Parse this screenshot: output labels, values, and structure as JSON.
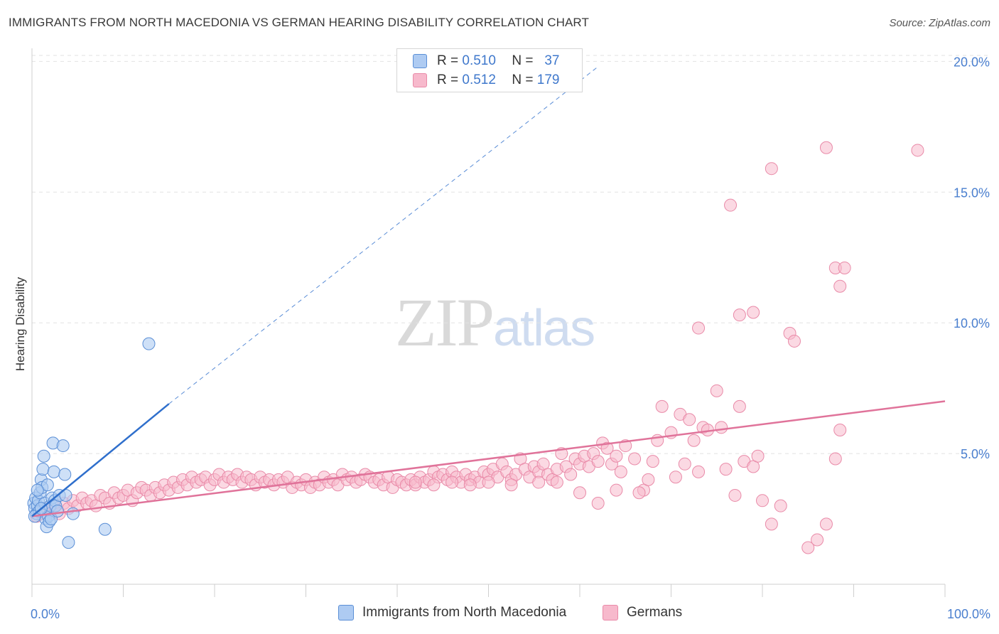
{
  "header": {
    "title": "IMMIGRANTS FROM NORTH MACEDONIA VS GERMAN HEARING DISABILITY CORRELATION CHART",
    "source": "Source: ZipAtlas.com"
  },
  "watermark": {
    "zip": "ZIP",
    "atlas": "atlas"
  },
  "legend": {
    "rows": [
      {
        "r_label": "R =",
        "r_value": "0.510",
        "n_label": "N =",
        "n_value": "37"
      },
      {
        "r_label": "R =",
        "r_value": "0.512",
        "n_label": "N =",
        "n_value": "179"
      }
    ]
  },
  "bottom_legend": {
    "series1": "Immigrants from North Macedonia",
    "series2": "Germans"
  },
  "chart_data": {
    "type": "scatter",
    "title": "IMMIGRANTS FROM NORTH MACEDONIA VS GERMAN HEARING DISABILITY CORRELATION CHART",
    "xlabel": "",
    "ylabel": "Hearing Disability",
    "xlim": [
      0,
      100
    ],
    "ylim": [
      0,
      20.5
    ],
    "x_ticks": [
      "0.0%",
      "100.0%"
    ],
    "y_ticks": [
      {
        "value": 5,
        "label": "5.0%"
      },
      {
        "value": 10,
        "label": "10.0%"
      },
      {
        "value": 15,
        "label": "15.0%"
      },
      {
        "value": 20,
        "label": "20.0%"
      }
    ],
    "grid": true,
    "colors": {
      "series1_fill": "#aecbf2",
      "series1_stroke": "#5b8fd6",
      "series1_line": "#2f6fcc",
      "series2_fill": "#f7b9cc",
      "series2_stroke": "#e98aa8",
      "series2_line": "#e0739a",
      "grid": "#e2e2e2",
      "tick_text": "#4a7fcf"
    },
    "series": [
      {
        "name": "Immigrants from North Macedonia",
        "trend": {
          "x0": 0,
          "y0": 2.6,
          "x1": 15,
          "y1": 6.9,
          "dashed_to_x": 62,
          "dashed_to_y": 19.8
        },
        "points": [
          [
            0.2,
            3.1
          ],
          [
            0.3,
            2.9
          ],
          [
            0.4,
            3.3
          ],
          [
            0.5,
            2.7
          ],
          [
            0.6,
            3.0
          ],
          [
            0.7,
            3.2
          ],
          [
            0.8,
            2.8
          ],
          [
            0.9,
            3.5
          ],
          [
            1.0,
            4.0
          ],
          [
            1.1,
            3.7
          ],
          [
            1.2,
            4.4
          ],
          [
            1.3,
            4.9
          ],
          [
            1.4,
            3.1
          ],
          [
            1.5,
            2.5
          ],
          [
            1.6,
            2.2
          ],
          [
            1.7,
            3.8
          ],
          [
            1.8,
            2.6
          ],
          [
            1.9,
            2.4
          ],
          [
            2.0,
            3.0
          ],
          [
            2.1,
            2.5
          ],
          [
            2.2,
            3.3
          ],
          [
            2.3,
            5.4
          ],
          [
            2.4,
            4.3
          ],
          [
            2.5,
            3.2
          ],
          [
            2.6,
            3.0
          ],
          [
            2.8,
            2.8
          ],
          [
            3.0,
            3.4
          ],
          [
            3.4,
            5.3
          ],
          [
            3.6,
            4.2
          ],
          [
            3.7,
            3.4
          ],
          [
            4.0,
            1.6
          ],
          [
            4.5,
            2.7
          ],
          [
            8.0,
            2.1
          ],
          [
            12.8,
            9.2
          ],
          [
            0.3,
            2.6
          ],
          [
            0.6,
            3.6
          ],
          [
            1.0,
            2.9
          ]
        ]
      },
      {
        "name": "Germans",
        "trend": {
          "x0": 0,
          "y0": 2.6,
          "x1": 100,
          "y1": 7.0
        },
        "points": [
          [
            0.5,
            2.6
          ],
          [
            1.0,
            2.7
          ],
          [
            1.5,
            2.9
          ],
          [
            2.0,
            2.8
          ],
          [
            2.5,
            3.0
          ],
          [
            3.0,
            2.7
          ],
          [
            3.5,
            3.1
          ],
          [
            4.0,
            2.9
          ],
          [
            4.5,
            3.2
          ],
          [
            5.0,
            3.0
          ],
          [
            5.5,
            3.3
          ],
          [
            6.0,
            3.1
          ],
          [
            6.5,
            3.2
          ],
          [
            7.0,
            3.0
          ],
          [
            7.5,
            3.4
          ],
          [
            8.0,
            3.3
          ],
          [
            8.5,
            3.1
          ],
          [
            9.0,
            3.5
          ],
          [
            9.5,
            3.3
          ],
          [
            10.0,
            3.4
          ],
          [
            10.5,
            3.6
          ],
          [
            11.0,
            3.2
          ],
          [
            11.5,
            3.5
          ],
          [
            12.0,
            3.7
          ],
          [
            12.5,
            3.6
          ],
          [
            13.0,
            3.4
          ],
          [
            13.5,
            3.7
          ],
          [
            14.0,
            3.5
          ],
          [
            14.5,
            3.8
          ],
          [
            15.0,
            3.6
          ],
          [
            15.5,
            3.9
          ],
          [
            16.0,
            3.7
          ],
          [
            16.5,
            4.0
          ],
          [
            17.0,
            3.8
          ],
          [
            17.5,
            4.1
          ],
          [
            18.0,
            3.9
          ],
          [
            18.5,
            4.0
          ],
          [
            19.0,
            4.1
          ],
          [
            19.5,
            3.8
          ],
          [
            20.0,
            4.0
          ],
          [
            20.5,
            4.2
          ],
          [
            21.0,
            3.9
          ],
          [
            21.5,
            4.1
          ],
          [
            22.0,
            4.0
          ],
          [
            22.5,
            4.2
          ],
          [
            23.0,
            3.9
          ],
          [
            23.5,
            4.1
          ],
          [
            24.0,
            4.0
          ],
          [
            24.5,
            3.8
          ],
          [
            25.0,
            4.1
          ],
          [
            25.5,
            3.9
          ],
          [
            26.0,
            4.0
          ],
          [
            26.5,
            3.8
          ],
          [
            27.0,
            4.0
          ],
          [
            27.5,
            3.9
          ],
          [
            28.0,
            4.1
          ],
          [
            28.5,
            3.7
          ],
          [
            29.0,
            3.9
          ],
          [
            29.5,
            3.8
          ],
          [
            30.0,
            4.0
          ],
          [
            30.5,
            3.7
          ],
          [
            31.0,
            3.9
          ],
          [
            31.5,
            3.8
          ],
          [
            32.0,
            4.1
          ],
          [
            32.5,
            3.9
          ],
          [
            33.0,
            4.0
          ],
          [
            33.5,
            3.8
          ],
          [
            34.0,
            4.2
          ],
          [
            34.5,
            4.0
          ],
          [
            35.0,
            4.1
          ],
          [
            35.5,
            3.9
          ],
          [
            36.0,
            4.0
          ],
          [
            36.5,
            4.2
          ],
          [
            37.0,
            4.1
          ],
          [
            37.5,
            3.9
          ],
          [
            38.0,
            4.0
          ],
          [
            38.5,
            3.8
          ],
          [
            39.0,
            4.1
          ],
          [
            39.5,
            3.7
          ],
          [
            40.0,
            4.0
          ],
          [
            40.5,
            3.9
          ],
          [
            41.0,
            3.8
          ],
          [
            41.5,
            4.0
          ],
          [
            42.0,
            3.8
          ],
          [
            42.5,
            4.1
          ],
          [
            43.0,
            3.9
          ],
          [
            43.5,
            4.0
          ],
          [
            44.0,
            4.3
          ],
          [
            44.5,
            4.1
          ],
          [
            45.0,
            4.2
          ],
          [
            45.5,
            4.0
          ],
          [
            46.0,
            4.3
          ],
          [
            46.5,
            4.1
          ],
          [
            47.0,
            3.9
          ],
          [
            47.5,
            4.2
          ],
          [
            48.0,
            4.0
          ],
          [
            48.5,
            4.1
          ],
          [
            49.0,
            3.9
          ],
          [
            49.5,
            4.3
          ],
          [
            50.0,
            4.2
          ],
          [
            50.5,
            4.4
          ],
          [
            51.0,
            4.1
          ],
          [
            51.5,
            4.6
          ],
          [
            52.0,
            4.3
          ],
          [
            52.5,
            4.0
          ],
          [
            53.0,
            4.2
          ],
          [
            53.5,
            4.8
          ],
          [
            54.0,
            4.4
          ],
          [
            54.5,
            4.1
          ],
          [
            55.0,
            4.5
          ],
          [
            55.5,
            4.3
          ],
          [
            56.0,
            4.6
          ],
          [
            56.5,
            4.2
          ],
          [
            57.0,
            4.0
          ],
          [
            57.5,
            4.4
          ],
          [
            58.0,
            5.0
          ],
          [
            58.5,
            4.5
          ],
          [
            59.0,
            4.2
          ],
          [
            59.5,
            4.8
          ],
          [
            60.0,
            4.6
          ],
          [
            60.5,
            4.9
          ],
          [
            61.0,
            4.5
          ],
          [
            61.5,
            5.0
          ],
          [
            62.0,
            4.7
          ],
          [
            62.5,
            5.4
          ],
          [
            63.0,
            5.2
          ],
          [
            63.5,
            4.6
          ],
          [
            64.0,
            4.9
          ],
          [
            64.5,
            4.3
          ],
          [
            65.0,
            5.3
          ],
          [
            66.0,
            4.8
          ],
          [
            67.0,
            3.6
          ],
          [
            67.5,
            4.0
          ],
          [
            68.0,
            4.7
          ],
          [
            68.5,
            5.5
          ],
          [
            69.0,
            6.8
          ],
          [
            70.0,
            5.8
          ],
          [
            71.0,
            6.5
          ],
          [
            71.5,
            4.6
          ],
          [
            72.0,
            6.3
          ],
          [
            72.5,
            5.5
          ],
          [
            73.0,
            4.3
          ],
          [
            73.5,
            6.0
          ],
          [
            74.0,
            5.9
          ],
          [
            75.0,
            7.4
          ],
          [
            75.5,
            6.0
          ],
          [
            76.0,
            4.4
          ],
          [
            77.0,
            3.4
          ],
          [
            77.5,
            6.8
          ],
          [
            78.0,
            4.7
          ],
          [
            79.0,
            4.5
          ],
          [
            79.5,
            4.9
          ],
          [
            80.0,
            3.2
          ],
          [
            81.0,
            2.3
          ],
          [
            82.0,
            3.0
          ],
          [
            83.0,
            9.6
          ],
          [
            83.5,
            9.3
          ],
          [
            85.0,
            1.4
          ],
          [
            86.0,
            1.7
          ],
          [
            87.0,
            2.3
          ],
          [
            88.0,
            4.8
          ],
          [
            88.5,
            5.9
          ],
          [
            77.5,
            10.3
          ],
          [
            79.0,
            10.4
          ],
          [
            73.0,
            9.8
          ],
          [
            76.5,
            14.5
          ],
          [
            81.0,
            15.9
          ],
          [
            87.0,
            16.7
          ],
          [
            88.0,
            12.1
          ],
          [
            89.0,
            12.1
          ],
          [
            88.5,
            11.4
          ],
          [
            97.0,
            16.6
          ],
          [
            60.0,
            3.5
          ],
          [
            62.0,
            3.1
          ],
          [
            64.0,
            3.6
          ],
          [
            66.5,
            3.5
          ],
          [
            70.5,
            4.1
          ],
          [
            55.5,
            3.9
          ],
          [
            57.5,
            3.9
          ],
          [
            52.5,
            3.8
          ],
          [
            50.0,
            3.9
          ],
          [
            48.0,
            3.8
          ],
          [
            46.0,
            3.9
          ],
          [
            44.0,
            3.8
          ],
          [
            42.0,
            3.9
          ]
        ]
      }
    ]
  }
}
